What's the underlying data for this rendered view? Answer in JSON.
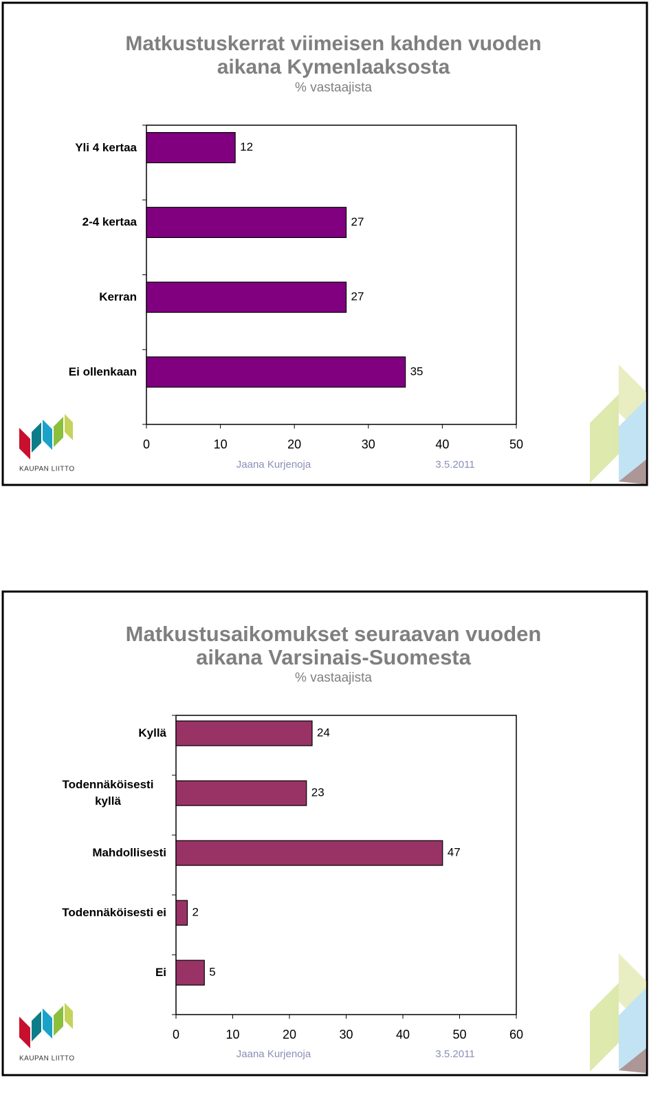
{
  "chart_data": [
    {
      "type": "bar",
      "orientation": "horizontal",
      "title": "Matkustuskerrat viimeisen kahden vuoden aikana Kymenlaaksosta",
      "subtitle": "% vastaajista",
      "categories": [
        "Yli 4 kertaa",
        "2-4 kertaa",
        "Kerran",
        "Ei ollenkaan"
      ],
      "values": [
        12,
        27,
        27,
        35
      ],
      "color": "#800080",
      "xlim": [
        0,
        50
      ],
      "xticks": [
        0,
        10,
        20,
        30,
        40,
        50
      ]
    },
    {
      "type": "bar",
      "orientation": "horizontal",
      "title": "Matkustusaikomukset seuraavan vuoden aikana Varsinais-Suomesta",
      "subtitle": "% vastaajista",
      "categories": [
        "Kyllä",
        "Todennäköisesti kyllä",
        "Mahdollisesti",
        "Todennäköisesti ei",
        "Ei"
      ],
      "values": [
        24,
        23,
        47,
        2,
        5
      ],
      "color": "#993366",
      "xlim": [
        0,
        60
      ],
      "xticks": [
        0,
        10,
        20,
        30,
        40,
        50,
        60
      ]
    }
  ],
  "slides": [
    {
      "author": "Jaana Kurjenoja",
      "date": "3.5.2011",
      "logo": "KAUPAN LIITTO"
    },
    {
      "author": "Jaana Kurjenoja",
      "date": "3.5.2011",
      "logo": "KAUPAN LIITTO"
    }
  ]
}
